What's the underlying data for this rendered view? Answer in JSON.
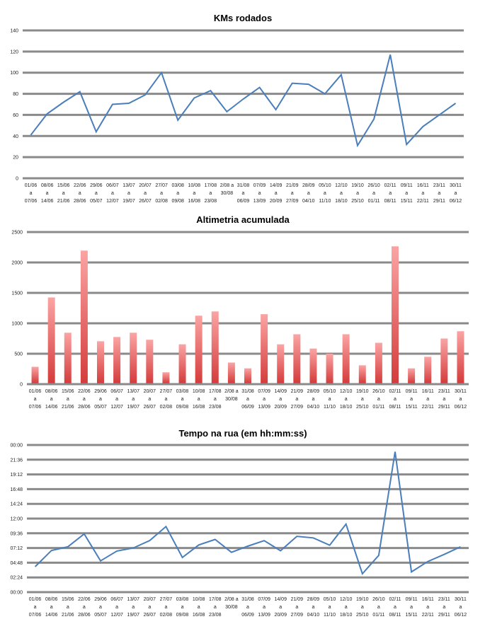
{
  "chart_data": [
    {
      "type": "line",
      "title": "KMs rodados",
      "xlabel": "",
      "ylabel": "",
      "ylim": [
        0,
        140
      ],
      "yticks": [
        "0",
        "20",
        "40",
        "60",
        "80",
        "100",
        "120",
        "140"
      ],
      "grid": true,
      "color": "#4a7ebb",
      "categories": [
        [
          "01/06",
          "a",
          "07/06"
        ],
        [
          "08/06",
          "a",
          "14/06"
        ],
        [
          "15/06",
          "a",
          "21/06"
        ],
        [
          "22/06",
          "a",
          "28/06"
        ],
        [
          "29/06",
          "a",
          "05/07"
        ],
        [
          "06/07",
          "a",
          "12/07"
        ],
        [
          "13/07",
          "a",
          "19/07"
        ],
        [
          "20/07",
          "a",
          "26/07"
        ],
        [
          "27/07",
          "a",
          "02/08"
        ],
        [
          "03/08",
          "a",
          "09/08"
        ],
        [
          "10/08",
          "a",
          "16/08"
        ],
        [
          "17/08",
          "a",
          "23/08"
        ],
        [
          "2/08 a",
          "30/08",
          ""
        ],
        [
          "31/08",
          "a",
          "06/09"
        ],
        [
          "07/09",
          "a",
          "13/09"
        ],
        [
          "14/09",
          "a",
          "20/09"
        ],
        [
          "21/09",
          "a",
          "27/09"
        ],
        [
          "28/09",
          "a",
          "04/10"
        ],
        [
          "05/10",
          "a",
          "11/10"
        ],
        [
          "12/10",
          "a",
          "18/10"
        ],
        [
          "19/10",
          "a",
          "25/10"
        ],
        [
          "26/10",
          "a",
          "01/11"
        ],
        [
          "02/11",
          "a",
          "08/11"
        ],
        [
          "09/11",
          "a",
          "15/11"
        ],
        [
          "16/11",
          "a",
          "22/11"
        ],
        [
          "23/11",
          "a",
          "29/11"
        ],
        [
          "30/11",
          "a",
          "06/12"
        ]
      ],
      "values": [
        41,
        61,
        72,
        82,
        44,
        70,
        71,
        79,
        100,
        55,
        76,
        83,
        63,
        75,
        86,
        65,
        90,
        89,
        80,
        98,
        31,
        56,
        117,
        32,
        49,
        60,
        71
      ]
    },
    {
      "type": "bar",
      "title": "Altimetria acumulada",
      "xlabel": "",
      "ylabel": "",
      "ylim": [
        0,
        2500
      ],
      "yticks": [
        "0",
        "500",
        "1000",
        "1500",
        "2000",
        "2500"
      ],
      "grid": true,
      "color_top": "#fba4a4",
      "color_bottom": "#d43c3c",
      "categories": [
        [
          "01/06",
          "a",
          "07/06"
        ],
        [
          "08/06",
          "a",
          "14/06"
        ],
        [
          "15/06",
          "a",
          "21/06"
        ],
        [
          "22/06",
          "a",
          "28/06"
        ],
        [
          "29/06",
          "a",
          "05/07"
        ],
        [
          "06/07",
          "a",
          "12/07"
        ],
        [
          "13/07",
          "a",
          "19/07"
        ],
        [
          "20/07",
          "a",
          "26/07"
        ],
        [
          "27/07",
          "a",
          "02/08"
        ],
        [
          "03/08",
          "a",
          "09/08"
        ],
        [
          "10/08",
          "a",
          "16/08"
        ],
        [
          "17/08",
          "a",
          "23/08"
        ],
        [
          "2/08 a",
          "30/08",
          ""
        ],
        [
          "31/08",
          "a",
          "06/09"
        ],
        [
          "07/09",
          "a",
          "13/09"
        ],
        [
          "14/09",
          "a",
          "20/09"
        ],
        [
          "21/09",
          "a",
          "27/09"
        ],
        [
          "28/09",
          "a",
          "04/10"
        ],
        [
          "05/10",
          "a",
          "11/10"
        ],
        [
          "12/10",
          "a",
          "18/10"
        ],
        [
          "19/10",
          "a",
          "25/10"
        ],
        [
          "26/10",
          "a",
          "01/11"
        ],
        [
          "02/11",
          "a",
          "08/11"
        ],
        [
          "09/11",
          "a",
          "15/11"
        ],
        [
          "16/11",
          "a",
          "22/11"
        ],
        [
          "23/11",
          "a",
          "29/11"
        ],
        [
          "30/11",
          "a",
          "06/12"
        ]
      ],
      "values": [
        285,
        1425,
        845,
        2195,
        705,
        775,
        845,
        730,
        195,
        655,
        1125,
        1195,
        355,
        260,
        1150,
        655,
        820,
        585,
        500,
        820,
        310,
        680,
        2265,
        260,
        450,
        750,
        870
      ]
    },
    {
      "type": "line",
      "title": "Tempo na rua (em hh:mm:ss)",
      "xlabel": "",
      "ylabel": "",
      "ylim_hours": [
        0,
        24
      ],
      "yticks": [
        "00:00",
        "02:24",
        "04:48",
        "07:12",
        "09:36",
        "12:00",
        "14:24",
        "16:48",
        "19:12",
        "21:36",
        "00:00"
      ],
      "grid": true,
      "color": "#4a7ebb",
      "categories": [
        [
          "01/06",
          "a",
          "07/06"
        ],
        [
          "08/06",
          "a",
          "14/06"
        ],
        [
          "15/06",
          "a",
          "21/06"
        ],
        [
          "22/06",
          "a",
          "28/06"
        ],
        [
          "29/06",
          "a",
          "05/07"
        ],
        [
          "06/07",
          "a",
          "12/07"
        ],
        [
          "13/07",
          "a",
          "19/07"
        ],
        [
          "20/07",
          "a",
          "26/07"
        ],
        [
          "27/07",
          "a",
          "02/08"
        ],
        [
          "03/08",
          "a",
          "09/08"
        ],
        [
          "10/08",
          "a",
          "16/08"
        ],
        [
          "17/08",
          "a",
          "23/08"
        ],
        [
          "2/08 a",
          "30/08",
          ""
        ],
        [
          "31/08",
          "a",
          "06/09"
        ],
        [
          "07/09",
          "a",
          "13/09"
        ],
        [
          "14/09",
          "a",
          "20/09"
        ],
        [
          "21/09",
          "a",
          "27/09"
        ],
        [
          "28/09",
          "a",
          "04/10"
        ],
        [
          "05/10",
          "a",
          "11/10"
        ],
        [
          "12/10",
          "a",
          "18/10"
        ],
        [
          "19/10",
          "a",
          "25/10"
        ],
        [
          "26/10",
          "a",
          "01/11"
        ],
        [
          "02/11",
          "a",
          "08/11"
        ],
        [
          "09/11",
          "a",
          "15/11"
        ],
        [
          "16/11",
          "a",
          "22/11"
        ],
        [
          "23/11",
          "a",
          "29/11"
        ],
        [
          "30/11",
          "a",
          "06/12"
        ]
      ],
      "values_hours": [
        4.15,
        6.8,
        7.4,
        9.5,
        5.1,
        6.7,
        7.2,
        8.4,
        10.7,
        5.65,
        7.7,
        8.6,
        6.5,
        7.5,
        8.4,
        6.75,
        9.1,
        8.85,
        7.65,
        11.1,
        3.0,
        6.0,
        22.9,
        3.3,
        5.0,
        6.15,
        7.4
      ]
    }
  ]
}
